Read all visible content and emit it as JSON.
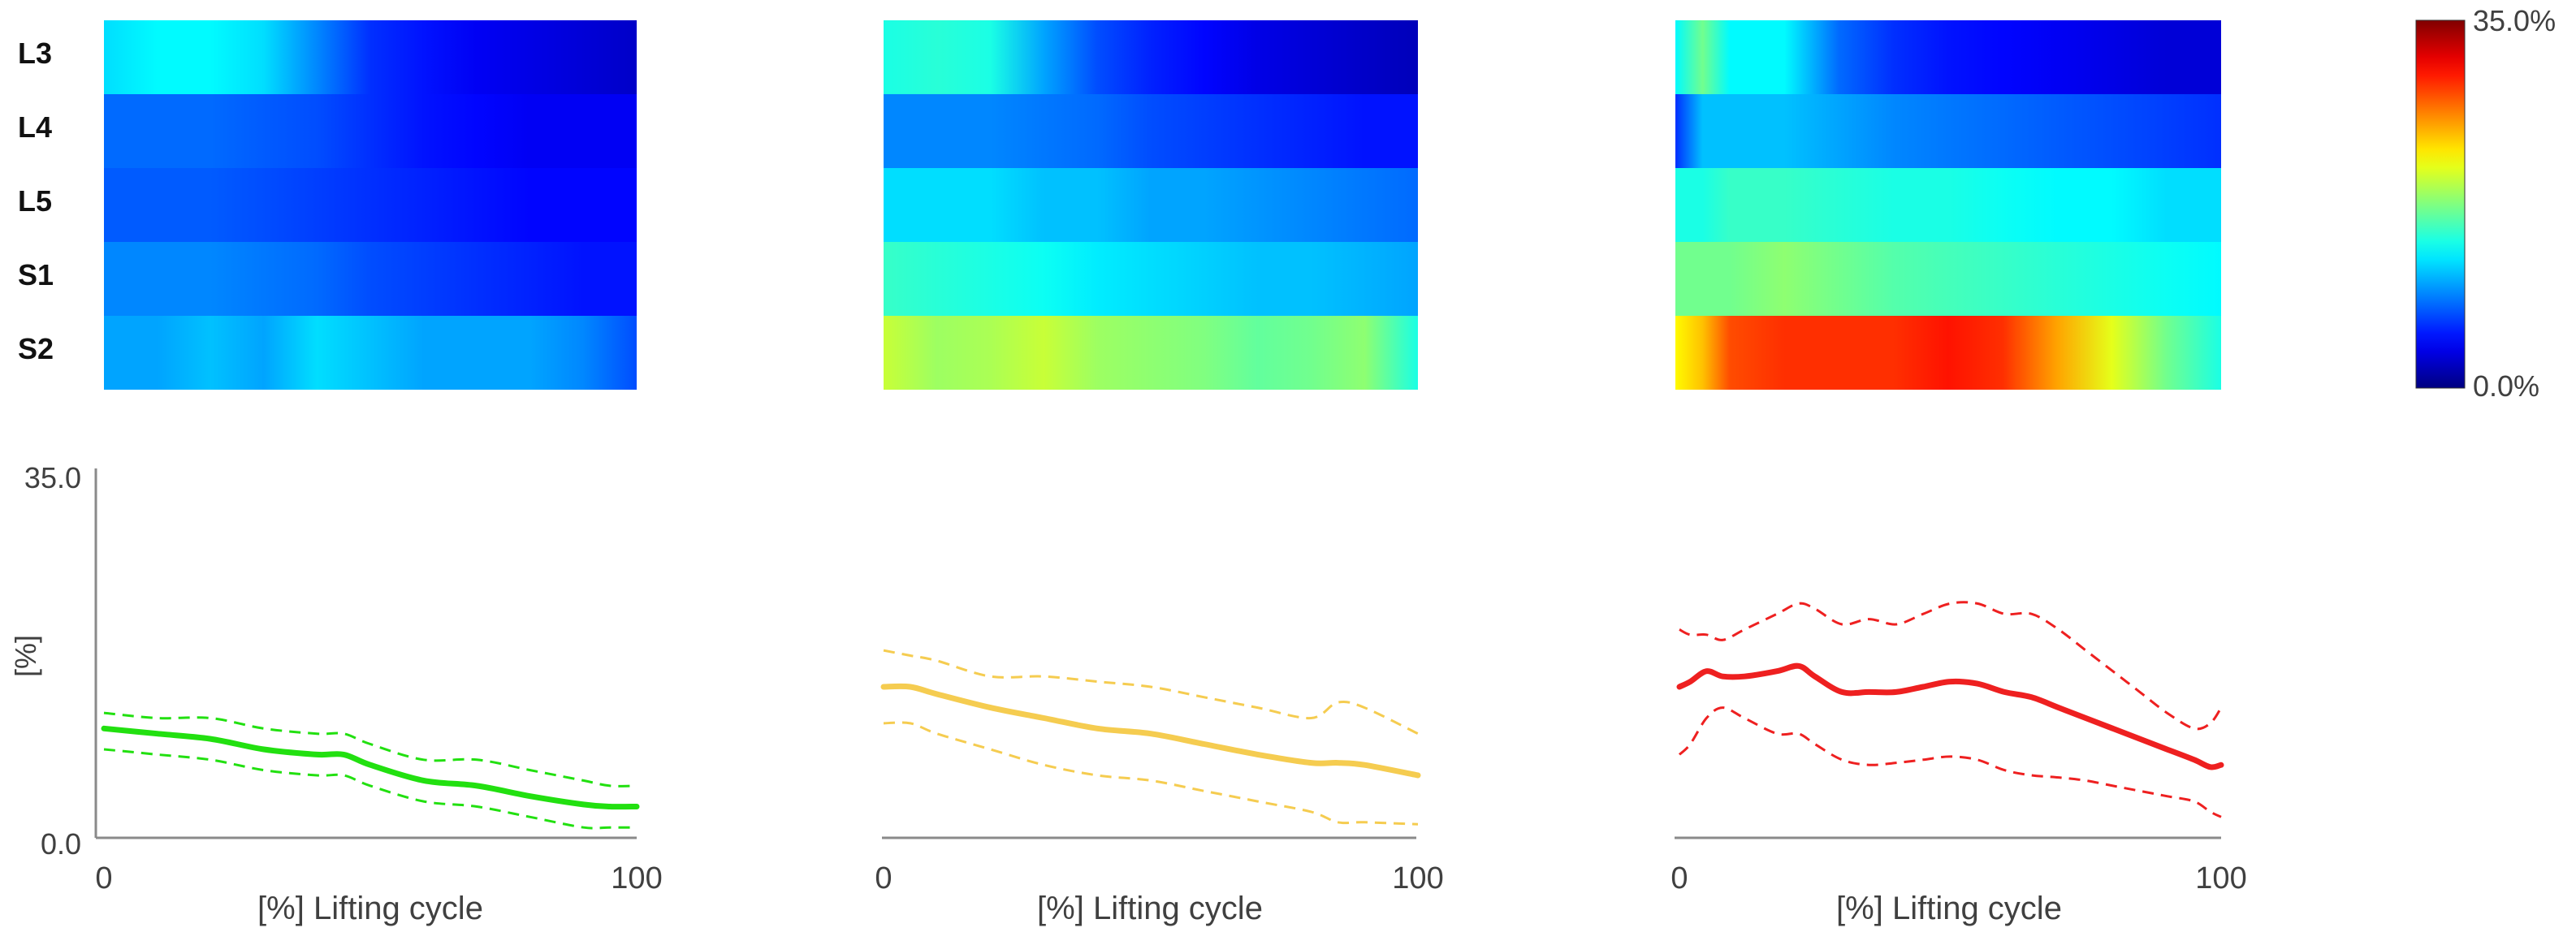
{
  "figure": {
    "row_labels": [
      "L3",
      "L4",
      "L5",
      "S1",
      "S2"
    ],
    "colorbar": {
      "max_label": "35.0%",
      "min_label": "0.0%"
    },
    "y_axis": {
      "label": "[%]",
      "max_label": "35.0",
      "min_label": "0.0"
    },
    "x_axis": {
      "label": "[%] Lifting cycle",
      "min_label": "0",
      "max_label": "100"
    }
  },
  "chart_data": {
    "type": "heatmap_with_lines",
    "colormap": "jet",
    "value_range": [
      0,
      35
    ],
    "rows": [
      "L3",
      "L4",
      "L5",
      "S1",
      "S2"
    ],
    "x_range": [
      0,
      100
    ],
    "y_range": [
      0,
      35
    ],
    "panels": [
      {
        "id": "left",
        "line_color": "#22e010",
        "heatmap": {
          "x": [
            0,
            10,
            20,
            30,
            40,
            50,
            60,
            70,
            80,
            90,
            100
          ],
          "rows": {
            "L3": [
              12,
              13,
              13,
              12,
              9,
              6,
              5,
              4,
              3.5,
              3,
              2.5
            ],
            "L4": [
              8,
              8,
              8,
              7.5,
              7,
              6,
              5,
              4.5,
              4,
              4,
              4
            ],
            "L5": [
              7.5,
              7.5,
              7.5,
              7,
              6.5,
              6,
              5.5,
              5,
              4.5,
              4.5,
              4.5
            ],
            "S1": [
              9,
              9,
              9,
              8.5,
              8,
              7,
              6.5,
              6,
              5.5,
              5,
              5
            ],
            "S2": [
              10,
              10,
              11,
              10,
              12,
              11,
              10,
              10,
              10,
              9,
              7
            ]
          }
        },
        "lines": {
          "x": [
            0,
            10,
            20,
            30,
            40,
            45,
            50,
            60,
            70,
            80,
            90,
            95,
            100
          ],
          "mean": [
            10.5,
            10,
            9.5,
            8.5,
            8,
            8,
            7,
            5.5,
            5,
            4,
            3.2,
            3,
            3
          ],
          "upper": [
            12,
            11.5,
            11.5,
            10.5,
            10,
            10,
            9,
            7.5,
            7.5,
            6.5,
            5.5,
            5,
            5
          ],
          "lower": [
            8.5,
            8,
            7.5,
            6.5,
            6,
            6,
            5,
            3.5,
            3,
            2,
            1,
            1,
            1
          ]
        }
      },
      {
        "id": "middle",
        "line_color": "#f5cc50",
        "heatmap": {
          "x": [
            0,
            10,
            20,
            30,
            40,
            50,
            60,
            70,
            80,
            90,
            100
          ],
          "rows": {
            "L3": [
              14,
              14.5,
              14,
              10,
              7,
              5.5,
              4.5,
              3.5,
              3,
              2.5,
              2
            ],
            "L4": [
              9,
              9,
              9,
              8.5,
              8,
              7,
              6.5,
              6,
              5.5,
              5,
              5
            ],
            "L5": [
              12,
              12,
              12,
              11,
              11,
              10,
              10,
              9.5,
              9,
              8.5,
              8
            ],
            "S1": [
              15,
              14.5,
              14,
              13.5,
              12.5,
              12,
              11.5,
              11,
              11,
              10.5,
              10
            ],
            "S2": [
              20,
              18.5,
              19,
              20,
              18.5,
              18,
              17.5,
              16.5,
              17,
              18,
              14
            ]
          }
        },
        "lines": {
          "x": [
            0,
            5,
            10,
            20,
            30,
            40,
            50,
            60,
            70,
            80,
            85,
            90,
            100
          ],
          "mean": [
            14.5,
            14.5,
            13.8,
            12.5,
            11.5,
            10.5,
            10,
            9,
            8,
            7.2,
            7.2,
            7,
            6
          ],
          "upper": [
            18,
            17.5,
            17,
            15.5,
            15.5,
            15,
            14.5,
            13.5,
            12.5,
            11.5,
            13,
            12.5,
            10
          ],
          "lower": [
            11,
            11,
            10,
            8.5,
            7,
            6,
            5.5,
            4.5,
            3.5,
            2.5,
            1.5,
            1.5,
            1.3
          ]
        }
      },
      {
        "id": "right",
        "line_color": "#ee2020",
        "heatmap": {
          "x": [
            0,
            5,
            10,
            20,
            30,
            40,
            50,
            60,
            70,
            80,
            90,
            100
          ],
          "rows": {
            "L3": [
              13,
              17,
              13,
              13,
              8,
              6,
              5,
              4.5,
              4,
              3.5,
              3,
              3
            ],
            "L4": [
              6,
              11,
              11,
              11,
              10,
              9,
              8.5,
              8,
              7.5,
              7,
              6.5,
              6
            ],
            "L5": [
              14,
              14,
              15,
              15,
              14.5,
              14,
              14,
              13.5,
              13,
              13,
              12,
              12
            ],
            "S1": [
              17,
              17,
              17,
              18,
              17,
              16,
              15.5,
              15,
              14.5,
              14,
              13.5,
              13
            ],
            "S2": [
              22,
              24,
              28,
              29,
              29,
              29,
              30,
              29,
              25,
              21,
              17,
              14
            ]
          }
        },
        "lines": {
          "x": [
            0,
            2,
            5,
            8,
            12,
            18,
            22,
            25,
            30,
            35,
            40,
            45,
            50,
            55,
            60,
            65,
            70,
            75,
            80,
            85,
            90,
            95,
            98,
            100
          ],
          "mean": [
            14.5,
            15,
            16,
            15.5,
            15.5,
            16,
            16.5,
            15.5,
            14,
            14,
            14,
            14.5,
            15,
            14.8,
            14,
            13.5,
            12.5,
            11.5,
            10.5,
            9.5,
            8.5,
            7.5,
            6.8,
            7
          ],
          "upper": [
            20,
            19.5,
            19.5,
            19,
            20,
            21.5,
            22.5,
            22,
            20.5,
            21,
            20.5,
            21.5,
            22.5,
            22.5,
            21.5,
            21.5,
            20,
            18,
            16,
            14,
            12,
            10.5,
            11,
            12.5
          ],
          "lower": [
            8,
            9,
            11.5,
            12.5,
            11.5,
            10,
            10,
            9,
            7.5,
            7,
            7.2,
            7.5,
            7.8,
            7.5,
            6.5,
            6,
            5.8,
            5.5,
            5,
            4.5,
            4,
            3.5,
            2.5,
            2
          ]
        }
      }
    ]
  }
}
